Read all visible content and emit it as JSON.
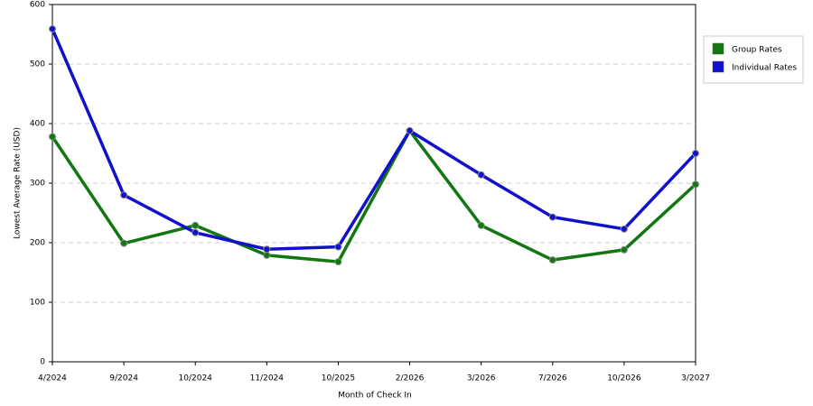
{
  "chart_data": {
    "type": "line",
    "x_label": "Month of Check In",
    "y_label": "Lowest Average Rate (USD)",
    "categories": [
      "4/2024",
      "9/2024",
      "10/2024",
      "11/2024",
      "10/2025",
      "2/2026",
      "3/2026",
      "7/2026",
      "10/2026",
      "3/2027"
    ],
    "series": [
      {
        "name": "Group Rates",
        "color": "#117711",
        "values": [
          378,
          199,
          229,
          179,
          168,
          388,
          229,
          171,
          188,
          298
        ]
      },
      {
        "name": "Individual Rates",
        "color": "#1111cc",
        "values": [
          559,
          280,
          217,
          189,
          193,
          388,
          314,
          243,
          223,
          350
        ]
      }
    ],
    "ylim": [
      0,
      600
    ],
    "yticks": [
      0,
      100,
      200,
      300,
      400,
      500,
      600
    ],
    "grid": true,
    "legend": "right"
  }
}
